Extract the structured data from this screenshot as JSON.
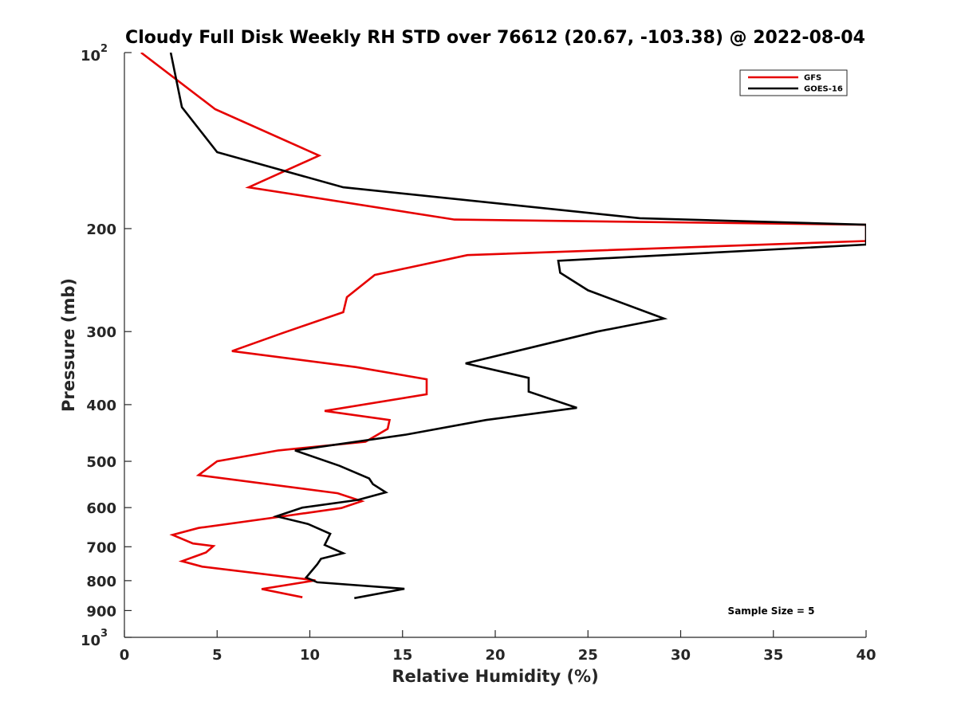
{
  "chart_data": {
    "type": "line",
    "title": "Cloudy Full Disk Weekly RH STD over 76612 (20.67, -103.38) @ 2022-08-04",
    "xlabel": "Relative Humidity (%)",
    "ylabel": "Pressure (mb)",
    "xlim": [
      0,
      40
    ],
    "ylim": [
      100,
      1000
    ],
    "yscale": "log",
    "yreversed": true,
    "grid": false,
    "legend_position": "top-right",
    "x_ticks": [
      "0",
      "5",
      "10",
      "15",
      "20",
      "25",
      "30",
      "35",
      "40"
    ],
    "y_ticks": [
      {
        "value": 100,
        "base": "10",
        "exp": "2"
      },
      {
        "value": 200,
        "label": "200"
      },
      {
        "value": 300,
        "label": "300"
      },
      {
        "value": 400,
        "label": "400"
      },
      {
        "value": 500,
        "label": "500"
      },
      {
        "value": 600,
        "label": "600"
      },
      {
        "value": 700,
        "label": "700"
      },
      {
        "value": 800,
        "label": "800"
      },
      {
        "value": 900,
        "label": "900"
      },
      {
        "value": 1000,
        "base": "10",
        "exp": "3"
      }
    ],
    "annotation": "Sample Size = 5",
    "series": [
      {
        "name": "GFS",
        "color": "#e60000",
        "points": [
          [
            0.9,
            100
          ],
          [
            4.9,
            125
          ],
          [
            10.5,
            150
          ],
          [
            6.7,
            170
          ],
          [
            17.8,
            193
          ],
          [
            40,
            197
          ],
          [
            40,
            210
          ],
          [
            18.5,
            222
          ],
          [
            13.5,
            240
          ],
          [
            12.0,
            262
          ],
          [
            11.8,
            278
          ],
          [
            8.5,
            302
          ],
          [
            5.8,
            324
          ],
          [
            12.5,
            345
          ],
          [
            16.3,
            362
          ],
          [
            16.3,
            384
          ],
          [
            10.8,
            410
          ],
          [
            14.3,
            425
          ],
          [
            14.2,
            440
          ],
          [
            13.0,
            463
          ],
          [
            8.3,
            479
          ],
          [
            5.0,
            500
          ],
          [
            4.0,
            528
          ],
          [
            11.5,
            567
          ],
          [
            12.8,
            585
          ],
          [
            11.7,
            601
          ],
          [
            8.4,
            622
          ],
          [
            4.0,
            650
          ],
          [
            2.6,
            668
          ],
          [
            3.7,
            691
          ],
          [
            4.8,
            698
          ],
          [
            4.4,
            716
          ],
          [
            3.1,
            741
          ],
          [
            4.2,
            757
          ],
          [
            10.3,
            799
          ],
          [
            7.4,
            827
          ],
          [
            9.6,
            854
          ]
        ]
      },
      {
        "name": "GOES-16",
        "color": "#000000",
        "points": [
          [
            2.5,
            100
          ],
          [
            3.1,
            124
          ],
          [
            5.0,
            148
          ],
          [
            11.8,
            170
          ],
          [
            27.8,
            192
          ],
          [
            40,
            197
          ],
          [
            40,
            213
          ],
          [
            23.4,
            227
          ],
          [
            23.5,
            238
          ],
          [
            25.0,
            255
          ],
          [
            29.1,
            285
          ],
          [
            25.5,
            300
          ],
          [
            18.4,
            340
          ],
          [
            21.8,
            360
          ],
          [
            21.8,
            380
          ],
          [
            24.4,
            405
          ],
          [
            19.5,
            425
          ],
          [
            15.2,
            450
          ],
          [
            9.2,
            479
          ],
          [
            11.6,
            509
          ],
          [
            13.2,
            535
          ],
          [
            13.4,
            547
          ],
          [
            14.1,
            565
          ],
          [
            12.6,
            582
          ],
          [
            9.6,
            600
          ],
          [
            8.2,
            621
          ],
          [
            9.9,
            640
          ],
          [
            11.1,
            665
          ],
          [
            10.8,
            695
          ],
          [
            11.8,
            718
          ],
          [
            10.6,
            734
          ],
          [
            10.4,
            750
          ],
          [
            9.8,
            790
          ],
          [
            10.4,
            805
          ],
          [
            15.1,
            826
          ],
          [
            12.4,
            857
          ]
        ]
      }
    ]
  }
}
